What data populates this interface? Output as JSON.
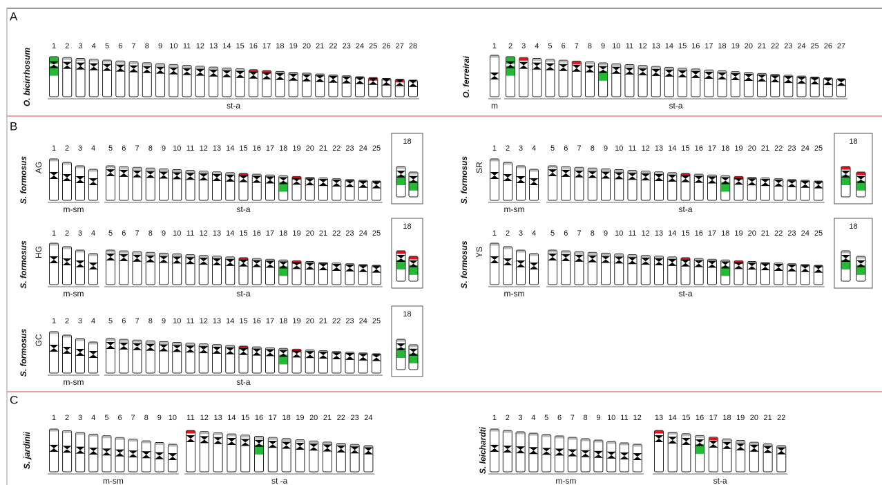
{
  "panels": [
    {
      "label": "A",
      "karyotypes": [
        {
          "species": "O. bicirrhosum",
          "groups": [
            {
              "label": "st-a",
              "numbers": [
                1,
                2,
                3,
                4,
                5,
                6,
                7,
                8,
                9,
                10,
                11,
                12,
                13,
                14,
                15,
                16,
                17,
                18,
                19,
                20,
                21,
                22,
                23,
                24,
                25,
                26,
                27,
                28
              ]
            }
          ]
        },
        {
          "species": "O. ferreirai",
          "groups": [
            {
              "label": "m",
              "numbers": [
                1
              ]
            },
            {
              "label": "st-a",
              "numbers": [
                2,
                3,
                4,
                5,
                6,
                7,
                8,
                9,
                10,
                11,
                12,
                13,
                14,
                15,
                16,
                17,
                18,
                19,
                20,
                21,
                22,
                23,
                24,
                25,
                26,
                27
              ]
            }
          ]
        }
      ]
    },
    {
      "label": "B",
      "karyotypes": [
        {
          "species": "S. formosus",
          "population": "AG",
          "groups": [
            {
              "label": "m-sm",
              "numbers": [
                1,
                2,
                3,
                4
              ]
            },
            {
              "label": "st-a",
              "numbers": [
                5,
                6,
                7,
                8,
                9,
                10,
                11,
                12,
                13,
                14,
                15,
                16,
                17,
                18,
                19,
                20,
                21,
                22,
                23,
                24,
                25
              ]
            }
          ],
          "inset_label": "18"
        },
        {
          "species": "S. formosus",
          "population": "SR",
          "groups": [
            {
              "label": "m-sm",
              "numbers": [
                1,
                2,
                3,
                4
              ]
            },
            {
              "label": "st-a",
              "numbers": [
                5,
                6,
                7,
                8,
                9,
                10,
                11,
                12,
                13,
                14,
                15,
                16,
                17,
                18,
                19,
                20,
                21,
                22,
                23,
                24,
                25
              ]
            }
          ],
          "inset_label": "18"
        },
        {
          "species": "S. formosus",
          "population": "HG",
          "groups": [
            {
              "label": "m-sm",
              "numbers": [
                1,
                2,
                3,
                4
              ]
            },
            {
              "label": "st-a",
              "numbers": [
                5,
                6,
                7,
                8,
                9,
                10,
                11,
                12,
                13,
                14,
                15,
                16,
                17,
                18,
                19,
                20,
                21,
                22,
                23,
                24,
                25
              ]
            }
          ],
          "inset_label": "18"
        },
        {
          "species": "S. formosus",
          "population": "YS",
          "groups": [
            {
              "label": "m-sm",
              "numbers": [
                1,
                2,
                3,
                4
              ]
            },
            {
              "label": "st-a",
              "numbers": [
                5,
                6,
                7,
                8,
                9,
                10,
                11,
                12,
                13,
                14,
                15,
                16,
                17,
                18,
                19,
                20,
                21,
                22,
                23,
                24,
                25
              ]
            }
          ],
          "inset_label": "18"
        },
        {
          "species": "S. formosus",
          "population": "GC",
          "groups": [
            {
              "label": "m-sm",
              "numbers": [
                1,
                2,
                3,
                4
              ]
            },
            {
              "label": "st-a",
              "numbers": [
                5,
                6,
                7,
                8,
                9,
                10,
                11,
                12,
                13,
                14,
                15,
                16,
                17,
                18,
                19,
                20,
                21,
                22,
                23,
                24,
                25
              ]
            }
          ],
          "inset_label": "18"
        }
      ]
    },
    {
      "label": "C",
      "karyotypes": [
        {
          "species": "S. jardinii",
          "groups": [
            {
              "label": "m-sm",
              "numbers": [
                1,
                2,
                3,
                4,
                5,
                6,
                7,
                8,
                9,
                10
              ]
            },
            {
              "label": "st -a",
              "numbers": [
                11,
                12,
                13,
                14,
                15,
                16,
                17,
                18,
                19,
                20,
                21,
                22,
                23,
                24
              ]
            }
          ]
        },
        {
          "species": "S. leichardti",
          "groups": [
            {
              "label": "m-sm",
              "numbers": [
                1,
                2,
                3,
                4,
                5,
                6,
                7,
                8,
                9,
                10,
                11,
                12
              ]
            },
            {
              "label": "st-a",
              "numbers": [
                13,
                14,
                15,
                16,
                17,
                18,
                19,
                20,
                21,
                22
              ]
            }
          ]
        }
      ]
    }
  ]
}
